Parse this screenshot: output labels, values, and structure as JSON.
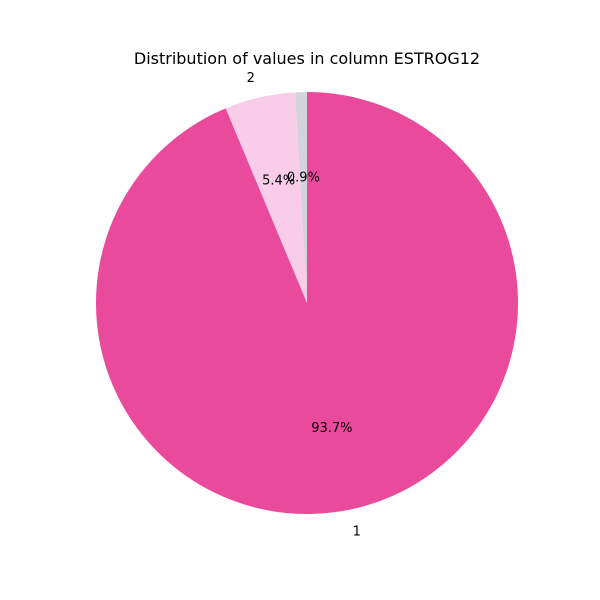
{
  "chart_data": {
    "type": "pie",
    "title": "Distribution of values in column ESTROG12",
    "slices": [
      {
        "label": "",
        "value": 0.9,
        "pct_label": "0.9%",
        "color": "#d3d3db"
      },
      {
        "label": "2",
        "value": 5.4,
        "pct_label": "5.4%",
        "color": "#f9cde7"
      },
      {
        "label": "1",
        "value": 93.7,
        "pct_label": "93.7%",
        "color": "#ea4a9b"
      }
    ],
    "start_angle": 90,
    "direction": "counterclockwise"
  }
}
